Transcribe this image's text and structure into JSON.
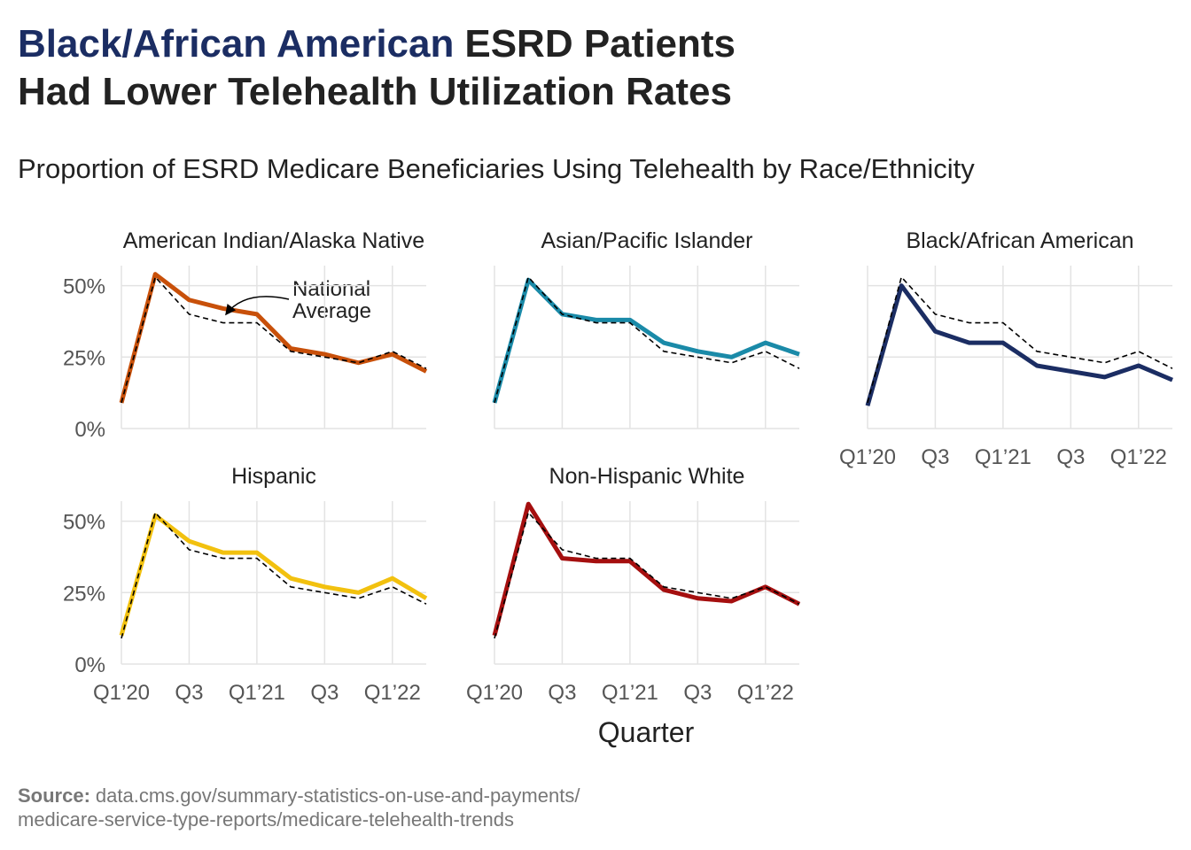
{
  "chart_data": {
    "type": "line",
    "title": {
      "highlight": "Black/African American",
      "highlight_color": "#1b2d63",
      "line1_rest": "ESRD Patients",
      "line2": "Had Lower Telehealth Utilization Rates"
    },
    "subtitle": "Proportion of ESRD Medicare Beneficiaries Using Telehealth by Race/Ethnicity",
    "xlabel": "Quarter",
    "x": [
      "Q1’20",
      null,
      "Q3",
      null,
      "Q1’21",
      null,
      "Q3",
      null,
      "Q1’22",
      null
    ],
    "ylim": [
      0,
      57
    ],
    "yticks": [
      {
        "value": 0,
        "label": "0%"
      },
      {
        "value": 25,
        "label": "25%"
      },
      {
        "value": 50,
        "label": "50%"
      }
    ],
    "grid": true,
    "national_average": {
      "color": "#000000",
      "dashed": true,
      "values": [
        9,
        53,
        40,
        37,
        37,
        27,
        25,
        23,
        27,
        21
      ]
    },
    "annotation": [
      "National",
      "Average"
    ],
    "series": [
      {
        "name": "American Indian/Alaska Native",
        "color": "#c8500a",
        "values": [
          9,
          54,
          45,
          42,
          40,
          28,
          26,
          23,
          26,
          20
        ]
      },
      {
        "name": "Asian/Pacific Islander",
        "color": "#1a8aa8",
        "values": [
          9,
          52,
          40,
          38,
          38,
          30,
          27,
          25,
          30,
          26
        ]
      },
      {
        "name": "Black/African American",
        "color": "#1b2d63",
        "values": [
          8,
          50,
          34,
          30,
          30,
          22,
          20,
          18,
          22,
          17
        ]
      },
      {
        "name": "Hispanic",
        "color": "#f2c10f",
        "values": [
          10,
          52,
          43,
          39,
          39,
          30,
          27,
          25,
          30,
          23
        ]
      },
      {
        "name": "Non-Hispanic White",
        "color": "#a50f0f",
        "values": [
          10,
          56,
          37,
          36,
          36,
          26,
          23,
          22,
          27,
          21
        ]
      }
    ],
    "source": {
      "label": "Source:",
      "lines": [
        "data.cms.gov/summary-statistics-on-use-and-payments/",
        "medicare-service-type-reports/medicare-telehealth-trends"
      ]
    }
  }
}
